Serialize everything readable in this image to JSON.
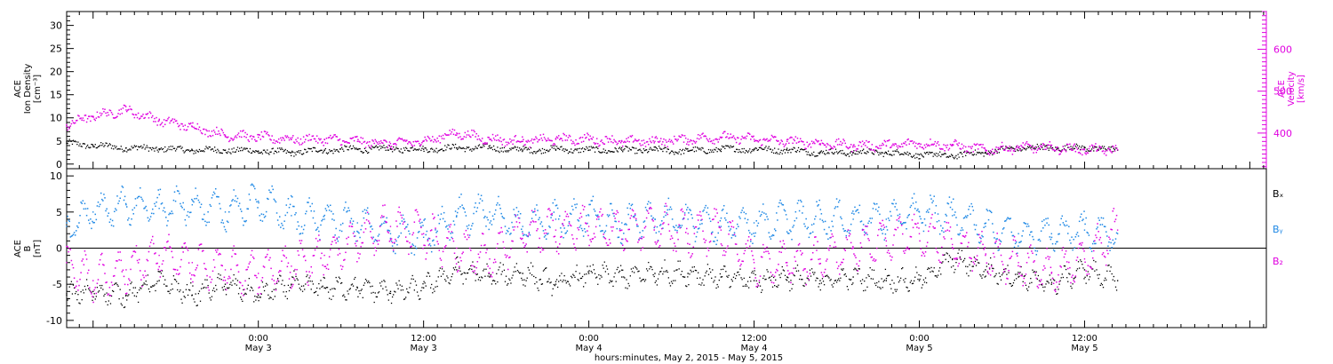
{
  "colors": {
    "black": "#000000",
    "magenta": "#e000e0",
    "blue": "#1e88e5"
  },
  "top_panel": {
    "left_axis_label_lines": [
      "ACE",
      "Ion Density",
      "[cm⁻³]"
    ],
    "right_axis_label_lines": [
      "ACE",
      "Velocity",
      "[km/s]"
    ]
  },
  "bottom_panel": {
    "left_axis_label_lines": [
      "ACE",
      "B",
      "[nT]"
    ],
    "legend": [
      {
        "label": "Bₓ",
        "color": "#000000"
      },
      {
        "label": "Bᵧ",
        "color": "#1e88e5"
      },
      {
        "label": "B₂",
        "color": "#e000e0"
      }
    ]
  },
  "x_axis": {
    "title": "hours:minutes, May  2, 2015 - May  5, 2015",
    "ticks": [
      {
        "t": 3.0,
        "line1": "0:00",
        "line2": "May 3"
      },
      {
        "t": 3.5,
        "line1": "12:00",
        "line2": "May 3"
      },
      {
        "t": 4.0,
        "line1": "0:00",
        "line2": "May 4"
      },
      {
        "t": 4.5,
        "line1": "12:00",
        "line2": "May 4"
      },
      {
        "t": 5.0,
        "line1": "0:00",
        "line2": "May 5"
      },
      {
        "t": 5.5,
        "line1": "12:00",
        "line2": "May 5"
      }
    ]
  },
  "chart_data": [
    {
      "type": "scatter",
      "panel": "top",
      "x_units": "days (May 2015)",
      "xlim": [
        2.42,
        6.05
      ],
      "y_left": {
        "label": "Ion Density [cm⁻³]",
        "ylim": [
          -1,
          33
        ],
        "ticks": [
          0,
          5,
          10,
          15,
          20,
          25,
          30
        ]
      },
      "y_right": {
        "label": "Velocity [km/s]",
        "ylim": [
          315,
          690
        ],
        "ticks": [
          400,
          500,
          600
        ]
      },
      "grid": false,
      "series": [
        {
          "name": "Ion Density",
          "axis": "left",
          "color": "#000000",
          "x": [
            2.42,
            2.5,
            2.6,
            2.7,
            2.8,
            2.9,
            3.0,
            3.1,
            3.2,
            3.3,
            3.4,
            3.5,
            3.6,
            3.7,
            3.8,
            3.9,
            4.0,
            4.1,
            4.2,
            4.3,
            4.4,
            4.5,
            4.6,
            4.7,
            4.8,
            4.9,
            5.0,
            5.1,
            5.2,
            5.3,
            5.4,
            5.5,
            5.6
          ],
          "values": [
            4.5,
            4.0,
            3.5,
            3.3,
            3.0,
            3.0,
            2.8,
            2.5,
            3.0,
            3.2,
            3.3,
            3.2,
            3.5,
            3.5,
            3.0,
            3.2,
            3.0,
            3.0,
            3.0,
            2.8,
            3.2,
            3.2,
            3.0,
            2.5,
            2.5,
            2.5,
            2.0,
            1.8,
            2.5,
            3.5,
            3.5,
            3.5,
            3.0
          ]
        },
        {
          "name": "Velocity",
          "axis": "right",
          "color": "#e000e0",
          "x": [
            2.42,
            2.5,
            2.6,
            2.7,
            2.8,
            2.9,
            3.0,
            3.1,
            3.2,
            3.3,
            3.4,
            3.5,
            3.6,
            3.7,
            3.8,
            3.9,
            4.0,
            4.1,
            4.2,
            4.3,
            4.4,
            4.5,
            4.6,
            4.7,
            4.8,
            4.9,
            5.0,
            5.1,
            5.2,
            5.3,
            5.4,
            5.5,
            5.6
          ],
          "values": [
            420,
            440,
            455,
            430,
            415,
            395,
            390,
            385,
            385,
            380,
            375,
            380,
            400,
            385,
            380,
            385,
            385,
            380,
            380,
            385,
            390,
            385,
            380,
            375,
            370,
            370,
            375,
            370,
            360,
            365,
            365,
            360,
            360
          ]
        }
      ]
    },
    {
      "type": "scatter",
      "panel": "bottom",
      "x_units": "days (May 2015)",
      "xlim": [
        2.42,
        6.05
      ],
      "ylim": [
        -11,
        11
      ],
      "ticks": [
        -10,
        -5,
        0,
        5,
        10
      ],
      "zero_line": true,
      "grid": false,
      "series": [
        {
          "name": "Bx",
          "color": "#000000",
          "x": [
            2.42,
            2.5,
            2.6,
            2.7,
            2.8,
            2.9,
            3.0,
            3.1,
            3.2,
            3.3,
            3.4,
            3.5,
            3.6,
            3.7,
            3.8,
            3.9,
            4.0,
            4.1,
            4.2,
            4.3,
            4.4,
            4.5,
            4.6,
            4.7,
            4.8,
            4.9,
            5.0,
            5.1,
            5.2,
            5.3,
            5.4,
            5.5,
            5.6
          ],
          "values": [
            -6.5,
            -6.0,
            -6.5,
            -4.5,
            -6.5,
            -5.0,
            -6.5,
            -5.0,
            -5.5,
            -5.5,
            -6.0,
            -5.5,
            -3.0,
            -4.0,
            -3.5,
            -5.0,
            -3.5,
            -4.0,
            -3.5,
            -3.5,
            -4.0,
            -4.5,
            -4.0,
            -4.5,
            -4.0,
            -4.5,
            -4.5,
            -1.5,
            -3.0,
            -4.0,
            -5.0,
            -3.0,
            -4.5
          ]
        },
        {
          "name": "By",
          "color": "#1e88e5",
          "x": [
            2.42,
            2.5,
            2.6,
            2.7,
            2.8,
            2.9,
            3.0,
            3.1,
            3.2,
            3.3,
            3.4,
            3.5,
            3.6,
            3.7,
            3.8,
            3.9,
            4.0,
            4.1,
            4.2,
            4.3,
            4.4,
            4.5,
            4.6,
            4.7,
            4.8,
            4.9,
            5.0,
            5.1,
            5.2,
            5.3,
            5.4,
            5.5,
            5.6
          ],
          "values": [
            3.0,
            5.0,
            6.0,
            5.5,
            6.0,
            5.0,
            6.5,
            4.5,
            4.0,
            3.5,
            2.0,
            1.5,
            4.5,
            5.0,
            3.0,
            4.0,
            4.5,
            3.5,
            4.0,
            4.0,
            3.0,
            3.5,
            4.0,
            4.0,
            4.0,
            4.0,
            5.0,
            4.5,
            3.0,
            2.0,
            2.0,
            2.5,
            2.0
          ]
        },
        {
          "name": "Bz",
          "color": "#e000e0",
          "x": [
            2.42,
            2.5,
            2.6,
            2.7,
            2.8,
            2.9,
            3.0,
            3.1,
            3.2,
            3.3,
            3.4,
            3.5,
            3.6,
            3.7,
            3.8,
            3.9,
            4.0,
            4.1,
            4.2,
            4.3,
            4.4,
            4.5,
            4.6,
            4.7,
            4.8,
            4.9,
            5.0,
            5.1,
            5.2,
            5.3,
            5.4,
            5.5,
            5.6
          ],
          "values": [
            -2.0,
            -4.5,
            -3.0,
            -1.0,
            -2.0,
            -3.0,
            -3.5,
            -2.5,
            -1.0,
            1.0,
            3.0,
            2.0,
            0.0,
            -1.5,
            2.0,
            2.5,
            3.0,
            2.5,
            3.0,
            2.0,
            2.5,
            -2.0,
            -2.0,
            -1.5,
            0.0,
            1.0,
            2.0,
            0.5,
            -1.0,
            -2.0,
            -3.5,
            -1.5,
            2.5
          ]
        }
      ]
    }
  ]
}
